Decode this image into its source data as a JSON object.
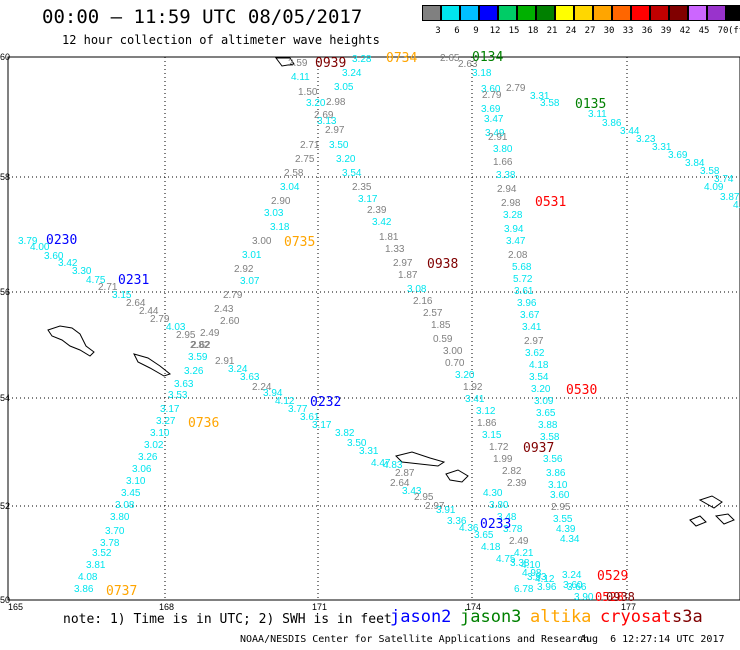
{
  "header": {
    "title": "00:00 – 11:59 UTC 08/05/2017",
    "subtitle": "12 hour collection of altimeter wave heights"
  },
  "colorbar": {
    "labels": [
      "3",
      "6",
      "9",
      "12",
      "15",
      "18",
      "21",
      "24",
      "27",
      "30",
      "33",
      "36",
      "39",
      "42",
      "45",
      "70",
      "(ft)"
    ],
    "colors": [
      "#808080",
      "#00e5ee",
      "#00bfff",
      "#0000ff",
      "#00cc66",
      "#00b000",
      "#008000",
      "#ffff00",
      "#ffd700",
      "#ffa500",
      "#ff6600",
      "#ff0000",
      "#c00000",
      "#800000",
      "#cc66ff",
      "#9933cc",
      "#000000"
    ]
  },
  "axes": {
    "lon_labels": [
      "165",
      "168",
      "171",
      "174",
      "177"
    ],
    "lat_labels": [
      "60",
      "58",
      "56",
      "54",
      "52",
      "50"
    ]
  },
  "tracks": [
    {
      "label": "0939",
      "color": "#800000",
      "points": [
        [
          "2.59",
          "#808080"
        ],
        [
          "4.11",
          "#00e5ee"
        ],
        [
          "1.50",
          "#808080"
        ],
        [
          "3.20",
          "#00e5ee"
        ],
        [
          "2.98",
          "#808080"
        ],
        [
          "2.69",
          "#808080"
        ],
        [
          "3.13",
          "#00e5ee"
        ],
        [
          "2.97",
          "#808080"
        ],
        [
          "2.71",
          "#808080"
        ],
        [
          "3.50",
          "#00e5ee"
        ],
        [
          "2.75",
          "#808080"
        ],
        [
          "3.20",
          "#00e5ee"
        ],
        [
          "2.58",
          "#808080"
        ],
        [
          "3.54",
          "#00e5ee"
        ],
        [
          "3.04",
          "#00e5ee"
        ],
        [
          "2.35",
          "#808080"
        ],
        [
          "2.90",
          "#808080"
        ],
        [
          "3.17",
          "#00e5ee"
        ],
        [
          "3.03",
          "#00e5ee"
        ],
        [
          "2.39",
          "#808080"
        ],
        [
          "3.18",
          "#00e5ee"
        ],
        [
          "3.42",
          "#00e5ee"
        ],
        [
          "3.00",
          "#808080"
        ],
        [
          "1.81",
          "#808080"
        ],
        [
          "3.01",
          "#00e5ee"
        ],
        [
          "1.33",
          "#808080"
        ],
        [
          "2.92",
          "#808080"
        ],
        [
          "2.97",
          "#808080"
        ],
        [
          "3.07",
          "#00e5ee"
        ],
        [
          "1.87",
          "#808080"
        ],
        [
          "2.79",
          "#808080"
        ],
        [
          "3.08",
          "#00e5ee"
        ],
        [
          "2.43",
          "#808080"
        ],
        [
          "2.16",
          "#808080"
        ],
        [
          "2.60",
          "#808080"
        ],
        [
          "2.57",
          "#808080"
        ],
        [
          "2.49",
          "#808080"
        ],
        [
          "1.85",
          "#808080"
        ],
        [
          "2.62",
          "#808080"
        ],
        [
          "0.59",
          "#808080"
        ],
        [
          "3.00",
          "#808080"
        ],
        [
          "0.70",
          "#808080"
        ],
        [
          "3.20",
          "#00e5ee"
        ],
        [
          "1.92",
          "#808080"
        ],
        [
          "3.41",
          "#00e5ee"
        ],
        [
          "3.12",
          "#00e5ee"
        ],
        [
          "1.86",
          "#808080"
        ],
        [
          "3.15",
          "#00e5ee"
        ],
        [
          "1.72",
          "#808080"
        ],
        [
          "1.99",
          "#808080"
        ],
        [
          "2.82",
          "#808080"
        ],
        [
          "2.39",
          "#808080"
        ],
        [
          "4.30",
          "#00e5ee"
        ],
        [
          "3.80",
          "#00e5ee"
        ],
        [
          "3.48",
          "#00e5ee"
        ],
        [
          "3.78",
          "#00e5ee"
        ],
        [
          "2.49",
          "#808080"
        ],
        [
          "4.21",
          "#00e5ee"
        ],
        [
          "4.10",
          "#00e5ee"
        ],
        [
          "3.93",
          "#00e5ee"
        ],
        [
          "3.96",
          "#00e5ee"
        ],
        [
          "6.78",
          "#00e5ee"
        ]
      ]
    },
    {
      "label": "0734",
      "color": "#ffa500",
      "points": [
        [
          "3.28",
          "#00e5ee"
        ],
        [
          "3.24",
          "#00e5ee"
        ],
        [
          "3.05",
          "#00e5ee"
        ]
      ]
    },
    {
      "label": "0134",
      "color": "#008000",
      "points": [
        [
          "2.65",
          "#808080"
        ],
        [
          "2.63",
          "#808080"
        ],
        [
          "3.18",
          "#00e5ee"
        ],
        [
          "2.79",
          "#808080"
        ],
        [
          "3.60",
          "#00e5ee"
        ],
        [
          "2.79",
          "#808080"
        ],
        [
          "3.69",
          "#00e5ee"
        ],
        [
          "3.31",
          "#00e5ee"
        ],
        [
          "3.58",
          "#00e5ee"
        ],
        [
          "3.47",
          "#00e5ee"
        ],
        [
          "3.49",
          "#00e5ee"
        ]
      ]
    },
    {
      "label": "0135",
      "color": "#008000",
      "points": [
        [
          "3.11",
          "#00e5ee"
        ],
        [
          "3.86",
          "#00e5ee"
        ],
        [
          "3.44",
          "#00e5ee"
        ],
        [
          "3.23",
          "#00e5ee"
        ],
        [
          "3.31",
          "#00e5ee"
        ],
        [
          "3.69",
          "#00e5ee"
        ],
        [
          "3.84",
          "#00e5ee"
        ],
        [
          "3.58",
          "#00e5ee"
        ],
        [
          "3.74",
          "#00e5ee"
        ],
        [
          "4.09",
          "#00e5ee"
        ],
        [
          "3.87",
          "#00e5ee"
        ],
        [
          "4.",
          "#00e5ee"
        ]
      ]
    },
    {
      "label": "0531",
      "color": "#ff0000",
      "points": [
        [
          "2.91",
          "#808080"
        ],
        [
          "3.80",
          "#00e5ee"
        ],
        [
          "1.66",
          "#808080"
        ],
        [
          "3.38",
          "#00e5ee"
        ],
        [
          "2.94",
          "#808080"
        ],
        [
          "2.98",
          "#808080"
        ],
        [
          "3.28",
          "#00e5ee"
        ],
        [
          "3.94",
          "#00e5ee"
        ],
        [
          "3.47",
          "#00e5ee"
        ],
        [
          "2.08",
          "#808080"
        ],
        [
          "5.68",
          "#00e5ee"
        ],
        [
          "5.72",
          "#00e5ee"
        ],
        [
          "3.61",
          "#00e5ee"
        ],
        [
          "3.96",
          "#00e5ee"
        ],
        [
          "3.67",
          "#00e5ee"
        ],
        [
          "3.41",
          "#00e5ee"
        ],
        [
          "2.97",
          "#808080"
        ],
        [
          "3.62",
          "#00e5ee"
        ],
        [
          "4.18",
          "#00e5ee"
        ],
        [
          "3.54",
          "#00e5ee"
        ],
        [
          "3.20",
          "#00e5ee"
        ],
        [
          "3.09",
          "#00e5ee"
        ],
        [
          "3.65",
          "#00e5ee"
        ],
        [
          "3.88",
          "#00e5ee"
        ],
        [
          "3.58",
          "#00e5ee"
        ],
        [
          "3.56",
          "#00e5ee"
        ],
        [
          "3.86",
          "#00e5ee"
        ],
        [
          "3.10",
          "#00e5ee"
        ],
        [
          "3.60",
          "#00e5ee"
        ],
        [
          "2.95",
          "#808080"
        ],
        [
          "3.55",
          "#00e5ee"
        ],
        [
          "4.39",
          "#00e5ee"
        ],
        [
          "4.34",
          "#00e5ee"
        ],
        [
          "3.24",
          "#00e5ee"
        ],
        [
          "3.66",
          "#00e5ee"
        ],
        [
          "3.90",
          "#00e5ee"
        ]
      ]
    },
    {
      "label": "0530",
      "color": "#ff0000",
      "points": []
    },
    {
      "label": "0938",
      "color": "#800000",
      "points": []
    },
    {
      "label": "0937",
      "color": "#800000",
      "points": []
    },
    {
      "label": "0230",
      "color": "#0000ff",
      "points": [
        [
          "3.79",
          "#00e5ee"
        ],
        [
          "4.00",
          "#00e5ee"
        ],
        [
          "3.60",
          "#00e5ee"
        ],
        [
          "3.42",
          "#00e5ee"
        ],
        [
          "3.30",
          "#00e5ee"
        ],
        [
          "4.75",
          "#00e5ee"
        ],
        [
          "2.71",
          "#808080"
        ],
        [
          "3.15",
          "#00e5ee"
        ],
        [
          "2.64",
          "#808080"
        ],
        [
          "2.44",
          "#808080"
        ],
        [
          "2.79",
          "#808080"
        ],
        [
          "4.03",
          "#00e5ee"
        ],
        [
          "2.95",
          "#808080"
        ],
        [
          "2.82",
          "#808080"
        ]
      ]
    },
    {
      "label": "0231",
      "color": "#0000ff",
      "points": []
    },
    {
      "label": "0232",
      "color": "#0000ff",
      "points": [
        [
          "3.59",
          "#00e5ee"
        ],
        [
          "2.91",
          "#808080"
        ],
        [
          "3.26",
          "#00e5ee"
        ],
        [
          "3.24",
          "#00e5ee"
        ],
        [
          "3.63",
          "#00e5ee"
        ],
        [
          "2.24",
          "#808080"
        ],
        [
          "3.63",
          "#00e5ee"
        ],
        [
          "3.94",
          "#00e5ee"
        ],
        [
          "4.12",
          "#00e5ee"
        ],
        [
          "3.77",
          "#00e5ee"
        ],
        [
          "3.61",
          "#00e5ee"
        ],
        [
          "3.17",
          "#00e5ee"
        ],
        [
          "3.82",
          "#00e5ee"
        ],
        [
          "3.50",
          "#00e5ee"
        ],
        [
          "3.31",
          "#00e5ee"
        ],
        [
          "4.47",
          "#00e5ee"
        ],
        [
          "4.83",
          "#00e5ee"
        ],
        [
          "2.87",
          "#808080"
        ],
        [
          "2.64",
          "#808080"
        ],
        [
          "3.43",
          "#00e5ee"
        ],
        [
          "2.95",
          "#808080"
        ],
        [
          "2.97",
          "#808080"
        ],
        [
          "3.91",
          "#00e5ee"
        ],
        [
          "3.36",
          "#00e5ee"
        ],
        [
          "4.36",
          "#00e5ee"
        ],
        [
          "3.65",
          "#00e5ee"
        ],
        [
          "4.18",
          "#00e5ee"
        ],
        [
          "4.75",
          "#00e5ee"
        ],
        [
          "3.38",
          "#00e5ee"
        ],
        [
          "4.98",
          "#00e5ee"
        ],
        [
          "4.12",
          "#00e5ee"
        ],
        [
          "3.60",
          "#00e5ee"
        ]
      ]
    },
    {
      "label": "0233",
      "color": "#0000ff",
      "points": []
    },
    {
      "label": "0735",
      "color": "#ffa500",
      "points": []
    },
    {
      "label": "0736",
      "color": "#ffa500",
      "points": [
        [
          "3.53",
          "#00e5ee"
        ],
        [
          "3.17",
          "#00e5ee"
        ],
        [
          "3.27",
          "#00e5ee"
        ],
        [
          "3.10",
          "#00e5ee"
        ],
        [
          "3.02",
          "#00e5ee"
        ],
        [
          "3.26",
          "#00e5ee"
        ],
        [
          "3.06",
          "#00e5ee"
        ],
        [
          "3.10",
          "#00e5ee"
        ],
        [
          "3.45",
          "#00e5ee"
        ],
        [
          "3.08",
          "#00e5ee"
        ],
        [
          "3.80",
          "#00e5ee"
        ],
        [
          "3.70",
          "#00e5ee"
        ],
        [
          "3.78",
          "#00e5ee"
        ],
        [
          "3.52",
          "#00e5ee"
        ],
        [
          "3.81",
          "#00e5ee"
        ],
        [
          "4.08",
          "#00e5ee"
        ],
        [
          "3.86",
          "#00e5ee"
        ]
      ]
    },
    {
      "label": "0737",
      "color": "#ffa500",
      "points": []
    },
    {
      "label": "0529",
      "color": "#ff0000",
      "points": []
    },
    {
      "label": "0528",
      "color": "#ff0000",
      "points": []
    },
    {
      "label": "0938",
      "color": "#800000",
      "points": []
    }
  ],
  "footer": {
    "note": "note: 1) Time is in UTC; 2) SWH is in feet",
    "satellites": [
      {
        "name": "jason2",
        "color": "#0000ff"
      },
      {
        "name": "jason3",
        "color": "#008000"
      },
      {
        "name": "altika",
        "color": "#ffa500"
      },
      {
        "name": "cryosat",
        "color": "#ff0000"
      },
      {
        "name": "s3a",
        "color": "#800000"
      }
    ],
    "credit": "NOAA/NESDIS Center for Satellite Applications and Research",
    "timestamp": "Aug  6 12:27:14 UTC 2017"
  }
}
